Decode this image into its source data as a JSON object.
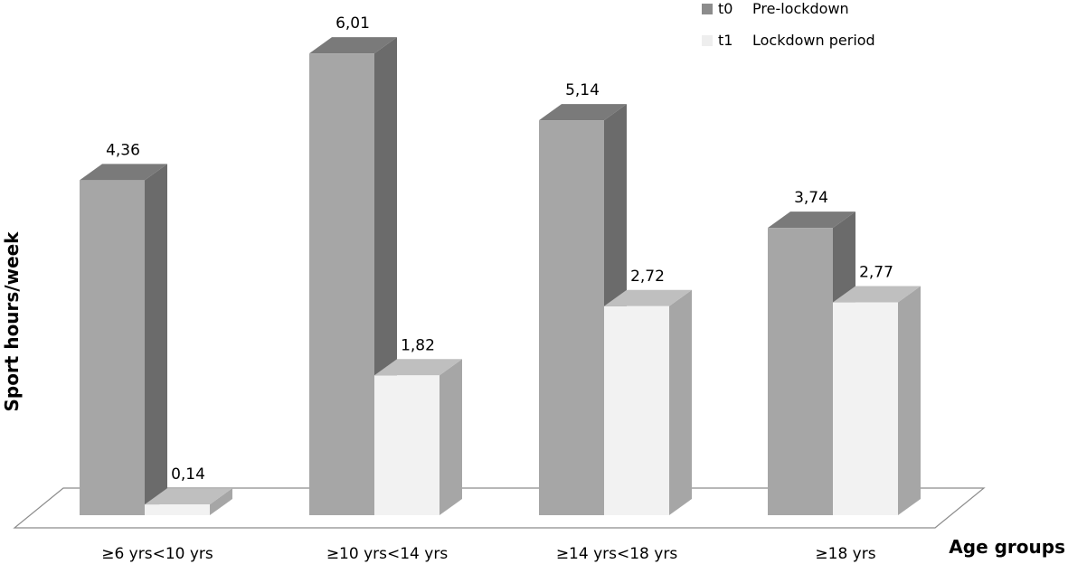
{
  "chart_data": {
    "type": "bar",
    "xlabel": "Age groups",
    "ylabel": "Sport hours/week",
    "categories": [
      "≥6 yrs<10 yrs",
      "≥10 yrs<14 yrs",
      "≥14 yrs<18 yrs",
      "≥18 yrs"
    ],
    "series": [
      {
        "name": "Pre-lockdown",
        "code": "t0",
        "values": [
          4.36,
          6.01,
          5.14,
          3.74
        ],
        "labels": [
          "4,36",
          "6,01",
          "5,14",
          "3,74"
        ],
        "colors": {
          "front": "#a6a6a6",
          "top": "#7a7a7a",
          "side": "#6b6b6b"
        }
      },
      {
        "name": "Lockdown period",
        "code": "t1",
        "values": [
          0.14,
          1.82,
          2.72,
          2.77
        ],
        "labels": [
          "0,14",
          "1,82",
          "2,72",
          "2,77"
        ],
        "colors": {
          "front": "#f2f2f2",
          "top": "#bfbfbf",
          "side": "#a6a6a6"
        }
      }
    ],
    "legend_position": "top-right",
    "grid": false,
    "style": "3d-columns"
  }
}
